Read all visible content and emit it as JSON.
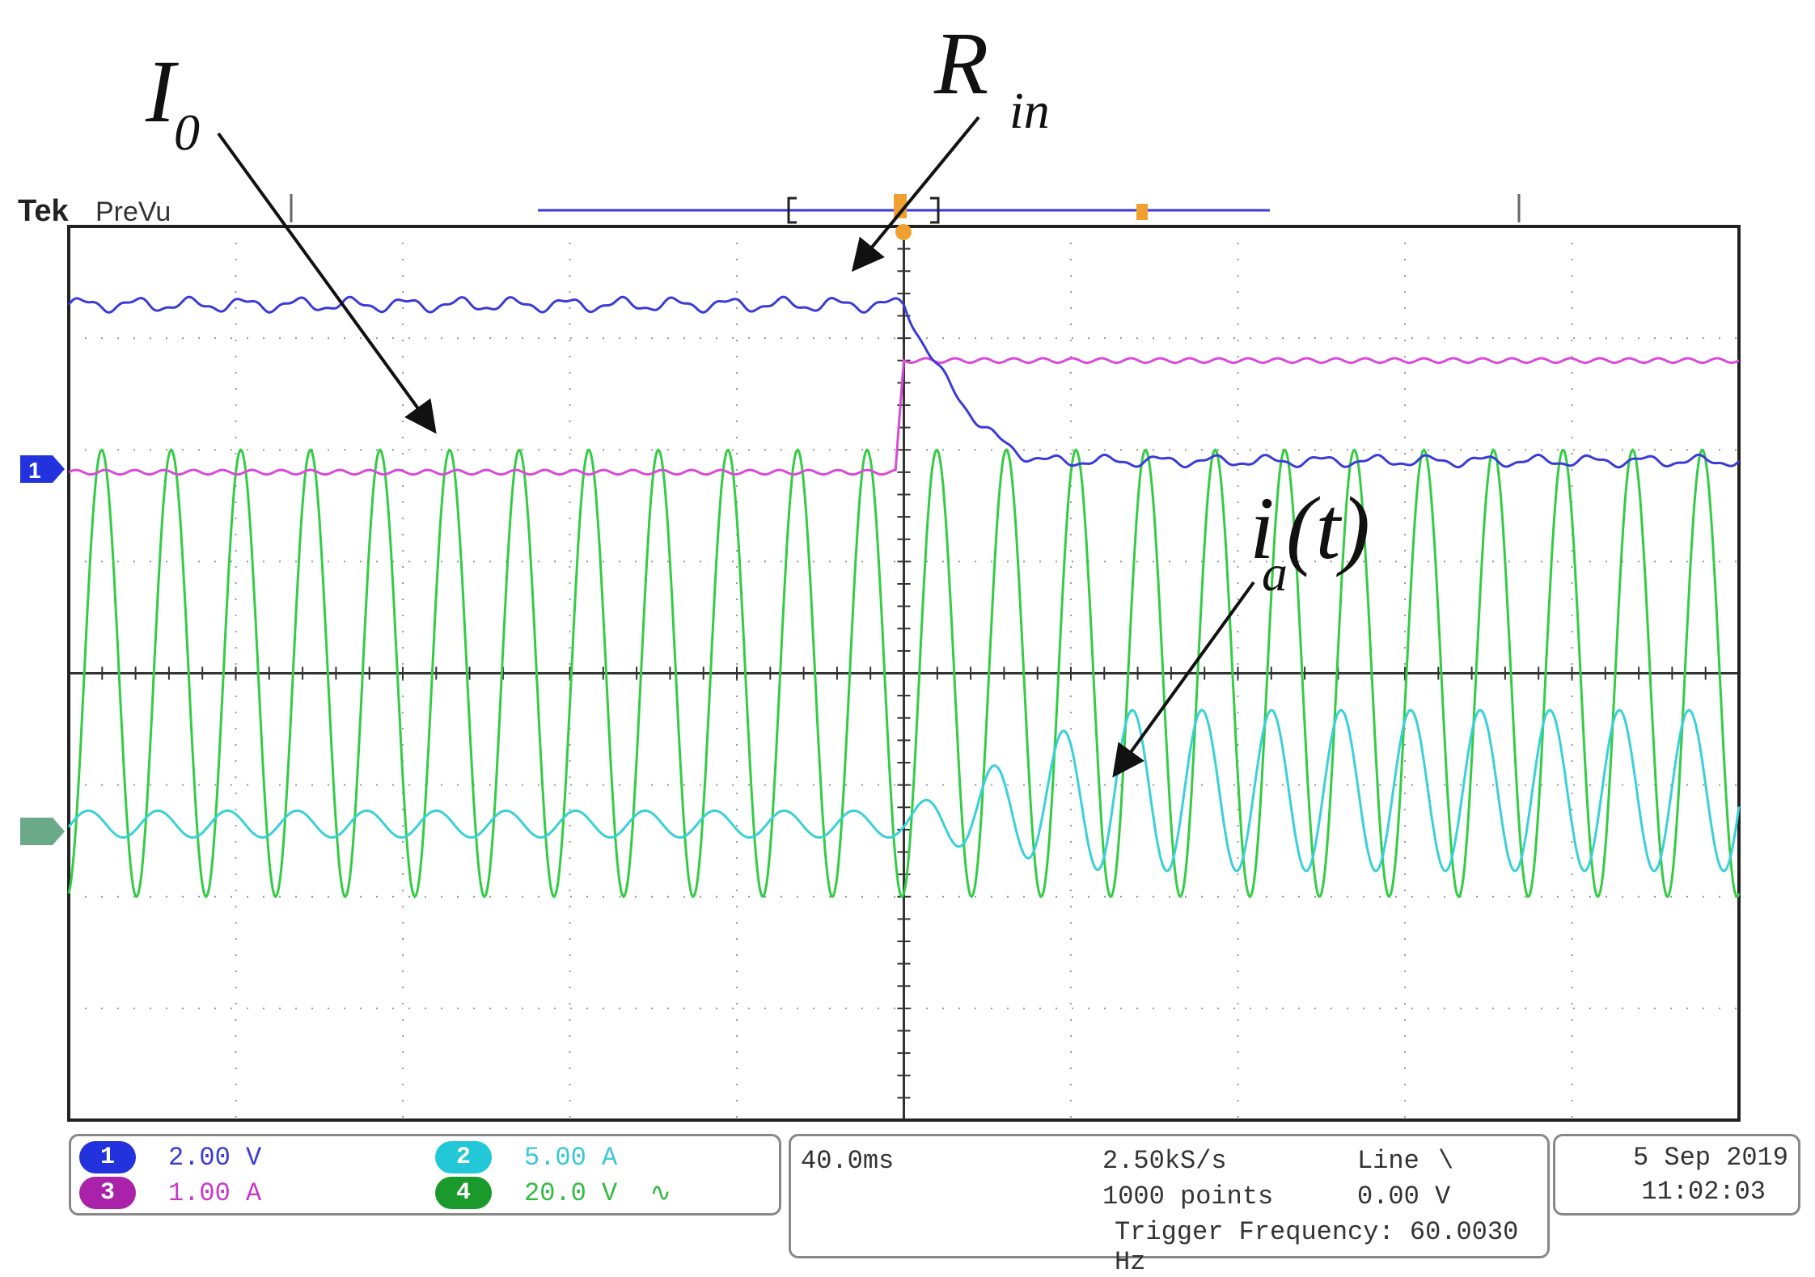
{
  "header": {
    "brand": "Tek",
    "mode": "PreVu"
  },
  "annotations": [
    {
      "main": "I",
      "sub": "0"
    },
    {
      "main": "R",
      "sub": "in"
    },
    {
      "main": "i",
      "sub": "a",
      "tail": "(t)"
    }
  ],
  "colors": {
    "ch1": "#3a3ad8",
    "ch2": "#39d0d8",
    "ch3": "#d84ad8",
    "ch4": "#33cc44",
    "grid": "#999999"
  },
  "channels": [
    {
      "id": "1",
      "scale": "2.00 V",
      "color": "#2233dd"
    },
    {
      "id": "2",
      "scale": "5.00 A",
      "color": "#22c8d8"
    },
    {
      "id": "3",
      "scale": "1.00 A",
      "color": "#aa22aa"
    },
    {
      "id": "4",
      "scale": "20.0 V",
      "color": "#1a9a2a"
    }
  ],
  "acquisition": {
    "timebase": "40.0ms",
    "sample_rate": "2.50kS/s",
    "record_length": "1000 points",
    "trigger_source": "Line",
    "trigger_level": "0.00 V",
    "trigger_frequency": "Trigger Frequency: 60.0030 Hz"
  },
  "datetime": {
    "date": "5 Sep 2019",
    "time": "11:02:03"
  },
  "chart_data": {
    "type": "line",
    "grid": true,
    "x_divisions": 10,
    "y_divisions": 8,
    "step_time_div": 5,
    "series": [
      {
        "id": "ch1",
        "before_div": 3.3,
        "after_div": 1.9,
        "settle_div": 0.9,
        "ripple_div": 0.05
      },
      {
        "id": "ch3",
        "before_div": 1.8,
        "after_div": 2.8,
        "ripple_div": 0.02
      },
      {
        "id": "ch4",
        "amplitude_div": 2.0,
        "offset_div": 0,
        "cycles": 24
      },
      {
        "id": "ch2",
        "offset_before_div": -1.35,
        "amplitude_before_div": 0.12,
        "offset_after_div": -1.05,
        "amplitude_after_div": 0.72,
        "cycles": 24
      }
    ]
  }
}
